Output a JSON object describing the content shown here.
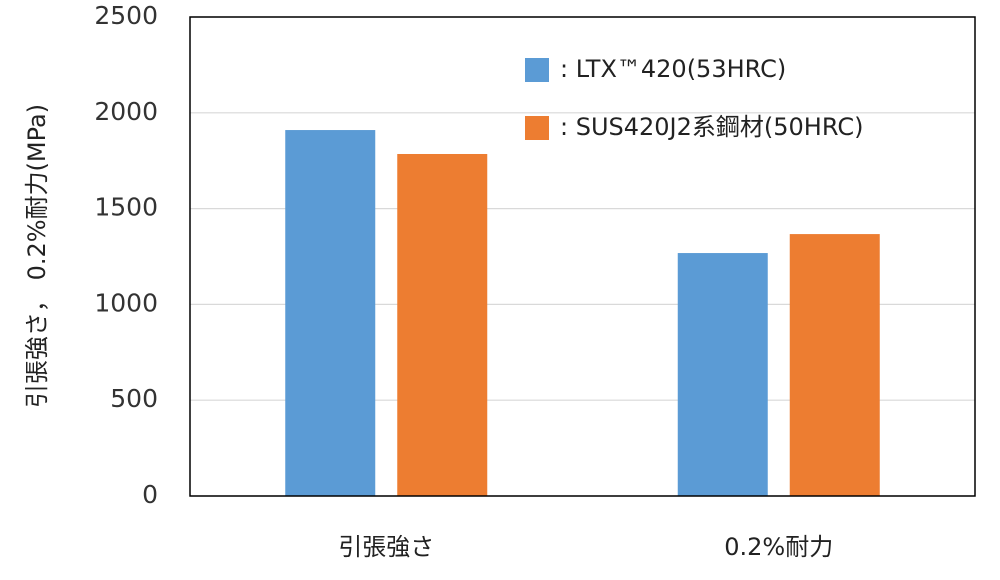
{
  "chart_data": {
    "type": "bar",
    "y_label": "引張強さ， 0.2%耐力(MPa)",
    "categories": [
      "引張強さ",
      "0.2%耐力"
    ],
    "series": [
      {
        "name": ": LTX™420(53HRC)",
        "color": "#5b9bd5",
        "values": [
          1910,
          1268
        ]
      },
      {
        "name": ": SUS420J2系鋼材(50HRC)",
        "color": "#ed7d31",
        "values": [
          1785,
          1367
        ]
      }
    ],
    "ylim": [
      0,
      2500
    ],
    "yticks": [
      0,
      500,
      1000,
      1500,
      2000,
      2500
    ],
    "grid": true,
    "legend": "upper-right"
  }
}
